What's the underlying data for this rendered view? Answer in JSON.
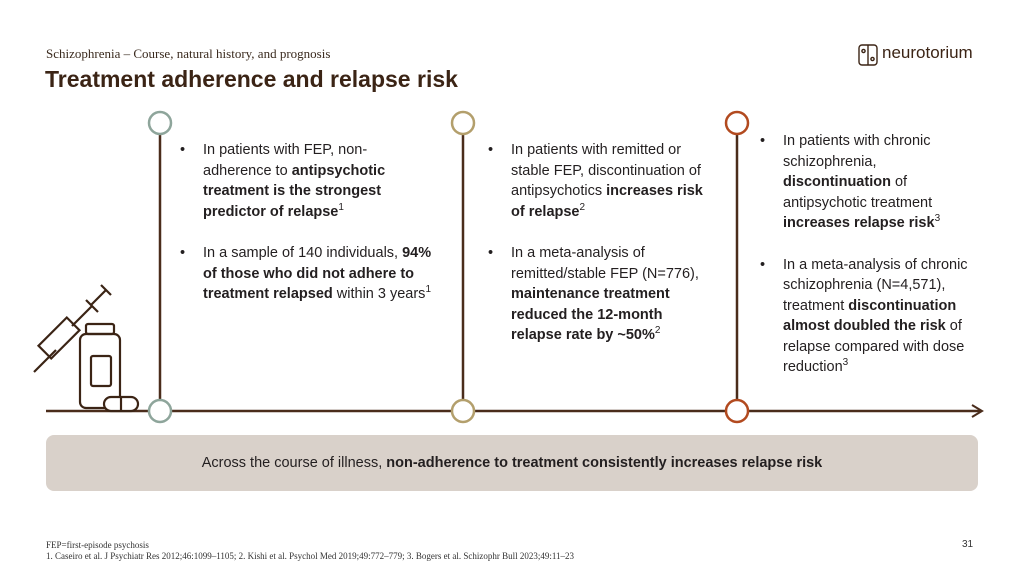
{
  "header": {
    "subtitle": "Schizophrenia – Course, natural history, and prognosis",
    "title": "Treatment adherence and relapse risk",
    "logo": "neurotorium"
  },
  "columns": [
    {
      "bullets": [
        [
          {
            "text": "In patients with FEP, non-adherence to "
          },
          {
            "text": "antipsychotic treatment is the strongest predictor of relapse",
            "style": "bold"
          },
          {
            "text": "1",
            "style": "sup"
          }
        ],
        [
          {
            "text": "In a sample of 140 individuals, "
          },
          {
            "text": "94% of those who did not adhere to treatment relapsed",
            "style": "bold"
          },
          {
            "text": " within 3 years"
          },
          {
            "text": "1",
            "style": "sup"
          }
        ]
      ]
    },
    {
      "bullets": [
        [
          {
            "text": "In patients with remitted or stable FEP, discontinuation of antipsychotics "
          },
          {
            "text": "increases risk of relapse",
            "style": "bold"
          },
          {
            "text": "2",
            "style": "sup"
          }
        ],
        [
          {
            "text": "In a meta-analysis of remitted/stable FEP (N=776), "
          },
          {
            "text": "maintenance treatment reduced the 12-month relapse rate by ~50%",
            "style": "bold"
          },
          {
            "text": "2",
            "style": "sup"
          }
        ]
      ]
    },
    {
      "bullets": [
        [
          {
            "text": "In patients with chronic schizophrenia, "
          },
          {
            "text": "discontinuation",
            "style": "bold"
          },
          {
            "text": " of antipsychotic treatment "
          },
          {
            "text": "increases relapse risk",
            "style": "bold"
          },
          {
            "text": "3",
            "style": "sup"
          }
        ],
        [
          {
            "text": "In a meta-analysis of chronic schizophrenia (N=4,571), treatment "
          },
          {
            "text": "discontinuation almost doubled the risk",
            "style": "bold"
          },
          {
            "text": " of relapse compared with dose reduction"
          },
          {
            "text": "3",
            "style": "sup"
          }
        ]
      ]
    }
  ],
  "banner": [
    {
      "text": "Across the course of illness, "
    },
    {
      "text": "non-adherence to treatment consistently increases relapse risk",
      "style": "bold"
    }
  ],
  "footer": {
    "abbreviation": "FEP=first-episode psychosis",
    "references": "1. Caseiro et al. J Psychiatr Res 2012;46:1099–1105; 2. Kishi et al. Psychol Med 2019;49:772–779; 3. Bogers et al. Schizophr Bull 2023;49:11–23",
    "page_number": 31
  }
}
